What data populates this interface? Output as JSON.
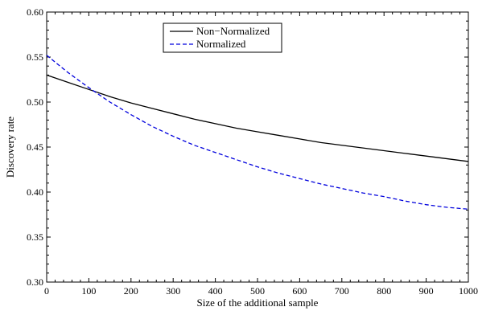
{
  "chart_data": {
    "type": "line",
    "xlabel": "Size of the additional sample",
    "ylabel": "Discovery rate",
    "xlim": [
      0,
      1000
    ],
    "ylim": [
      0.3,
      0.6
    ],
    "x_ticks": [
      "0",
      "100",
      "200",
      "300",
      "400",
      "500",
      "600",
      "700",
      "800",
      "900",
      "1000"
    ],
    "y_ticks": [
      "0.30",
      "0.35",
      "0.40",
      "0.45",
      "0.50",
      "0.55",
      "0.60"
    ],
    "grid": false,
    "legend_position": "top-center",
    "x": [
      0,
      50,
      100,
      150,
      200,
      250,
      300,
      350,
      400,
      450,
      500,
      550,
      600,
      650,
      700,
      750,
      800,
      850,
      900,
      950,
      1000
    ],
    "series": [
      {
        "name": "Non−Normalized",
        "color": "#000000",
        "style": "solid",
        "values": [
          0.53,
          0.522,
          0.514,
          0.506,
          0.499,
          0.493,
          0.487,
          0.481,
          0.476,
          0.471,
          0.467,
          0.463,
          0.459,
          0.455,
          0.452,
          0.449,
          0.446,
          0.443,
          0.44,
          0.437,
          0.434
        ]
      },
      {
        "name": "Normalized",
        "color": "#0000dd",
        "style": "dashed",
        "values": [
          0.552,
          0.533,
          0.516,
          0.5,
          0.486,
          0.473,
          0.462,
          0.452,
          0.444,
          0.436,
          0.428,
          0.421,
          0.415,
          0.409,
          0.404,
          0.399,
          0.395,
          0.39,
          0.386,
          0.383,
          0.381
        ]
      }
    ]
  }
}
